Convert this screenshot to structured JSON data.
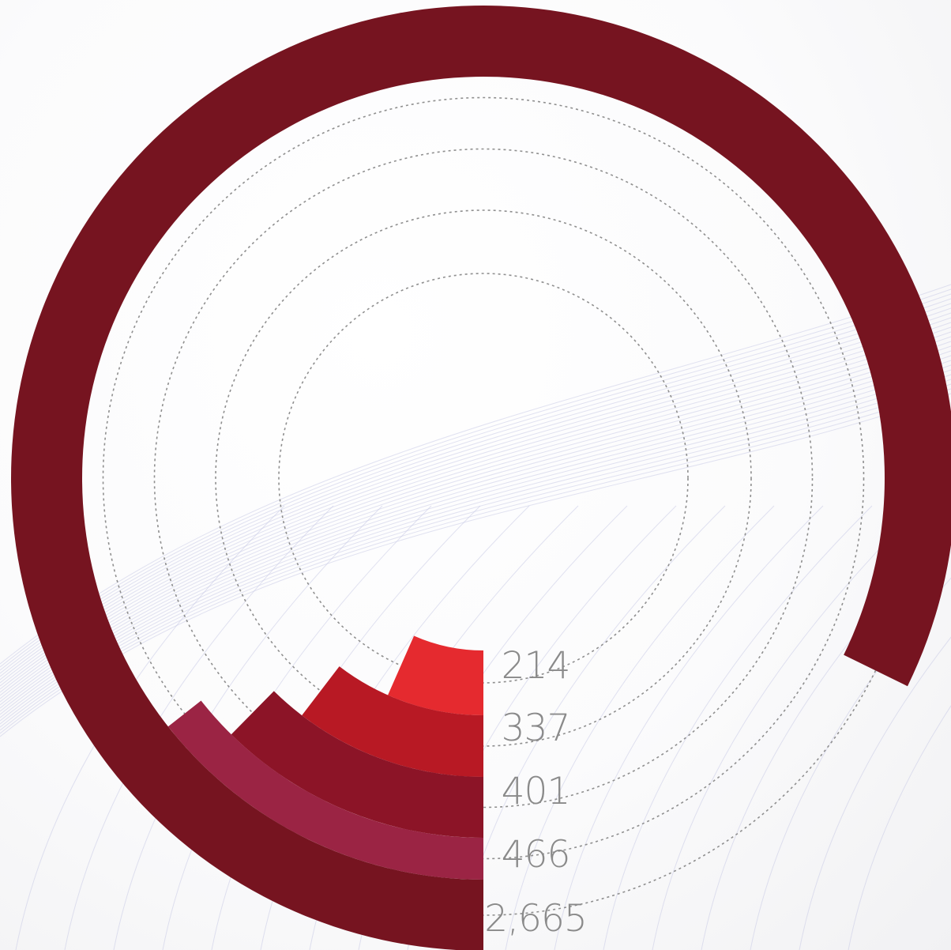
{
  "chart_data": {
    "type": "radial-bar",
    "max_angle_value": 3240,
    "series": [
      {
        "value": 214,
        "label": "214",
        "color": "#e52a2f"
      },
      {
        "value": 337,
        "label": "337",
        "color": "#b81924"
      },
      {
        "value": 401,
        "label": "401",
        "color": "#8c1427"
      },
      {
        "value": 466,
        "label": "466",
        "color": "#9b2444"
      },
      {
        "value": 2665,
        "label": "2,665",
        "color": "#761420"
      }
    ],
    "track_color": "#8f8f8f",
    "grid": "dotted-circular-tracks",
    "legend": "none"
  }
}
